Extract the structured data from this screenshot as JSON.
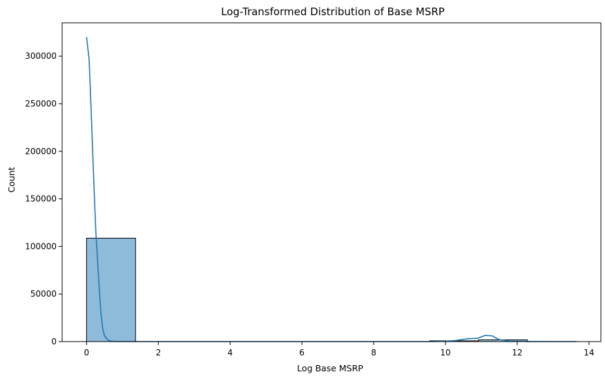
{
  "chart_data": {
    "type": "histogram",
    "title": "Log-Transformed Distribution of Base MSRP",
    "xlabel": "Log Base MSRP",
    "ylabel": "Count",
    "xlim": [
      -0.68,
      14.33
    ],
    "ylim": [
      0,
      335000
    ],
    "xticks": [
      0,
      2,
      4,
      6,
      8,
      10,
      12,
      14
    ],
    "yticks": [
      0,
      50000,
      100000,
      150000,
      200000,
      250000,
      300000
    ],
    "grid": false,
    "legend": "none",
    "bins": [
      {
        "x0": 0.0,
        "x1": 1.365,
        "count": 108700
      },
      {
        "x0": 1.365,
        "x1": 2.73,
        "count": 0
      },
      {
        "x0": 2.73,
        "x1": 4.095,
        "count": 0
      },
      {
        "x0": 4.095,
        "x1": 5.46,
        "count": 0
      },
      {
        "x0": 5.46,
        "x1": 6.825,
        "count": 0
      },
      {
        "x0": 6.825,
        "x1": 8.19,
        "count": 0
      },
      {
        "x0": 8.19,
        "x1": 9.555,
        "count": 0
      },
      {
        "x0": 9.555,
        "x1": 10.92,
        "count": 800
      },
      {
        "x0": 10.92,
        "x1": 12.285,
        "count": 1800
      },
      {
        "x0": 12.285,
        "x1": 13.65,
        "count": 30
      }
    ],
    "kde": {
      "x": [
        0.0,
        0.07,
        0.12,
        0.18,
        0.22,
        0.26,
        0.3,
        0.35,
        0.4,
        0.45,
        0.5,
        0.6,
        0.7,
        0.8,
        1.0,
        2.0,
        4.0,
        6.0,
        8.0,
        9.5,
        10.0,
        10.3,
        10.6,
        10.9,
        11.1,
        11.3,
        11.5,
        11.8,
        12.3,
        13.0,
        13.65
      ],
      "y": [
        320000,
        297000,
        250000,
        190000,
        150000,
        115000,
        90000,
        58000,
        30000,
        14000,
        6000,
        1500,
        300,
        50,
        0,
        0,
        0,
        0,
        0,
        0,
        300,
        1200,
        3000,
        3500,
        6500,
        6000,
        2000,
        400,
        50,
        0,
        0
      ]
    },
    "colors": {
      "bar_fill": "#8fbbdb",
      "bar_edge": "#000000",
      "kde_line": "#1f77b4"
    }
  }
}
